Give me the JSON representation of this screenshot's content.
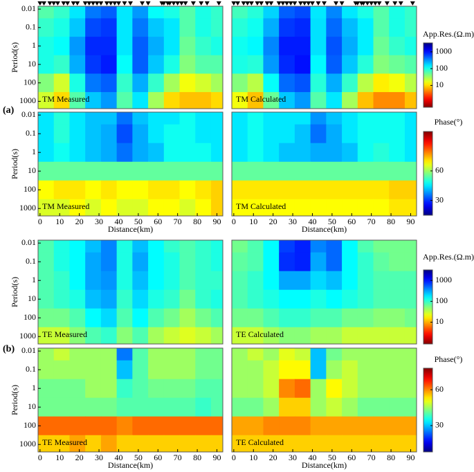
{
  "figure_labels": [
    "(a)",
    "(b)"
  ],
  "chart_data": [
    {
      "type": "heatmap",
      "title": "TM Measured",
      "stations": [
        0,
        2,
        5,
        7,
        9,
        12,
        14,
        17,
        19,
        23,
        25,
        27,
        29,
        31,
        34,
        36,
        38,
        40,
        43,
        46,
        52,
        55,
        62,
        63,
        65,
        66,
        68,
        70,
        72,
        74,
        78,
        82,
        85,
        91
      ],
      "x": [
        3,
        11,
        19,
        27,
        35,
        43,
        51,
        59,
        67,
        75,
        83,
        91
      ],
      "y": [
        0.01,
        0.1,
        1,
        10,
        100,
        1000
      ],
      "xlim": [
        -1,
        93
      ],
      "ylim": [
        0.007,
        2500
      ],
      "log_y": true,
      "yticks": [
        0.01,
        0.1,
        1,
        10,
        100,
        1000
      ],
      "ylabel": "Period(s)",
      "z": [
        [
          60,
          80,
          150,
          400,
          500,
          150,
          300,
          120,
          100,
          60,
          100,
          80
        ],
        [
          80,
          100,
          200,
          600,
          700,
          150,
          400,
          200,
          150,
          60,
          100,
          80
        ],
        [
          100,
          120,
          300,
          800,
          800,
          150,
          500,
          250,
          150,
          50,
          80,
          100
        ],
        [
          100,
          80,
          250,
          700,
          900,
          120,
          500,
          200,
          100,
          40,
          60,
          60
        ],
        [
          40,
          20,
          100,
          400,
          500,
          80,
          250,
          80,
          30,
          15,
          20,
          30
        ],
        [
          20,
          10,
          60,
          200,
          300,
          60,
          150,
          30,
          10,
          8,
          8,
          10
        ]
      ]
    },
    {
      "type": "heatmap",
      "title": "TM Calculated",
      "stations": [
        0,
        2,
        5,
        7,
        9,
        12,
        14,
        17,
        19,
        23,
        25,
        27,
        29,
        31,
        34,
        36,
        38,
        40,
        43,
        46,
        52,
        55,
        62,
        63,
        65,
        66,
        68,
        70,
        72,
        74,
        78,
        82,
        85,
        91
      ],
      "x": [
        3,
        11,
        19,
        27,
        35,
        43,
        51,
        59,
        67,
        75,
        83,
        91
      ],
      "y": [
        0.01,
        0.1,
        1,
        10,
        100,
        1000
      ],
      "xlim": [
        -1,
        93
      ],
      "ylim": [
        0.007,
        2500
      ],
      "log_y": true,
      "z": [
        [
          70,
          90,
          180,
          500,
          600,
          150,
          350,
          150,
          100,
          60,
          100,
          80
        ],
        [
          90,
          110,
          250,
          700,
          800,
          160,
          450,
          220,
          140,
          60,
          100,
          80
        ],
        [
          110,
          130,
          350,
          900,
          900,
          160,
          550,
          250,
          140,
          50,
          80,
          100
        ],
        [
          100,
          90,
          300,
          800,
          1000,
          130,
          500,
          200,
          90,
          40,
          50,
          60
        ],
        [
          40,
          25,
          120,
          450,
          550,
          90,
          250,
          80,
          25,
          12,
          15,
          25
        ],
        [
          15,
          8,
          50,
          200,
          300,
          60,
          150,
          30,
          8,
          5,
          5,
          8
        ]
      ]
    },
    {
      "type": "heatmap",
      "title": "TM Measured",
      "x": [
        3,
        11,
        19,
        27,
        35,
        43,
        51,
        59,
        67,
        75,
        83,
        91
      ],
      "y": [
        0.01,
        0.1,
        1,
        10,
        100,
        1000
      ],
      "xlim": [
        -1,
        93
      ],
      "ylim": [
        0.007,
        2500
      ],
      "log_y": true,
      "yticks": [
        0.01,
        0.1,
        1,
        10,
        100,
        1000
      ],
      "ylabel": "Period(s)",
      "xticks": [
        0,
        10,
        20,
        30,
        40,
        50,
        60,
        70,
        80,
        90
      ],
      "xlabel": "Distance(km)",
      "z": [
        [
          45,
          50,
          45,
          42,
          42,
          35,
          42,
          45,
          45,
          48,
          45,
          45
        ],
        [
          45,
          50,
          45,
          42,
          40,
          32,
          40,
          45,
          48,
          48,
          45,
          45
        ],
        [
          45,
          48,
          45,
          42,
          40,
          35,
          40,
          42,
          48,
          48,
          48,
          45
        ],
        [
          55,
          55,
          55,
          55,
          55,
          55,
          55,
          55,
          55,
          55,
          55,
          55
        ],
        [
          68,
          70,
          70,
          68,
          70,
          68,
          68,
          70,
          70,
          68,
          70,
          72
        ],
        [
          65,
          65,
          68,
          65,
          68,
          65,
          65,
          68,
          68,
          65,
          68,
          72
        ]
      ]
    },
    {
      "type": "heatmap",
      "title": "TM Calculated",
      "x": [
        3,
        11,
        19,
        27,
        35,
        43,
        51,
        59,
        67,
        75,
        83,
        91
      ],
      "y": [
        0.01,
        0.1,
        1,
        10,
        100,
        1000
      ],
      "xlim": [
        -1,
        93
      ],
      "ylim": [
        0.007,
        2500
      ],
      "log_y": true,
      "xticks": [
        0,
        10,
        20,
        30,
        40,
        50,
        60,
        70,
        80,
        90
      ],
      "xlabel": "Distance(km)",
      "z": [
        [
          45,
          48,
          45,
          45,
          45,
          38,
          42,
          45,
          48,
          48,
          48,
          45
        ],
        [
          45,
          48,
          45,
          45,
          42,
          35,
          40,
          45,
          48,
          48,
          48,
          45
        ],
        [
          45,
          48,
          45,
          42,
          42,
          40,
          40,
          42,
          48,
          50,
          48,
          45
        ],
        [
          55,
          55,
          55,
          55,
          55,
          55,
          55,
          55,
          55,
          55,
          55,
          55
        ],
        [
          70,
          70,
          70,
          70,
          70,
          70,
          70,
          70,
          70,
          70,
          72,
          72
        ],
        [
          68,
          68,
          68,
          68,
          68,
          68,
          68,
          68,
          68,
          68,
          70,
          70
        ]
      ]
    },
    {
      "type": "heatmap",
      "title": "TE Measured",
      "x": [
        3,
        11,
        19,
        27,
        35,
        43,
        51,
        59,
        67,
        75,
        83,
        91
      ],
      "y": [
        0.01,
        0.1,
        1,
        10,
        100,
        1000
      ],
      "xlim": [
        -1,
        93
      ],
      "ylim": [
        0.007,
        2500
      ],
      "log_y": true,
      "yticks": [
        0.01,
        0.1,
        1,
        10,
        100,
        1000
      ],
      "ylabel": "Period(s)",
      "z": [
        [
          80,
          120,
          150,
          250,
          400,
          120,
          250,
          150,
          100,
          80,
          100,
          120
        ],
        [
          80,
          120,
          150,
          300,
          400,
          120,
          300,
          150,
          120,
          80,
          100,
          120
        ],
        [
          80,
          100,
          150,
          300,
          350,
          120,
          250,
          150,
          120,
          80,
          100,
          100
        ],
        [
          80,
          100,
          120,
          250,
          300,
          100,
          200,
          120,
          100,
          60,
          100,
          120
        ],
        [
          60,
          60,
          80,
          150,
          200,
          80,
          150,
          80,
          60,
          40,
          60,
          80
        ],
        [
          30,
          30,
          50,
          80,
          100,
          50,
          80,
          40,
          30,
          25,
          30,
          40
        ]
      ]
    },
    {
      "type": "heatmap",
      "title": "TE Calculated",
      "x": [
        3,
        11,
        19,
        27,
        35,
        43,
        51,
        59,
        67,
        75,
        83,
        91
      ],
      "y": [
        0.01,
        0.1,
        1,
        10,
        100,
        1000
      ],
      "xlim": [
        -1,
        93
      ],
      "ylim": [
        0.007,
        2500
      ],
      "log_y": true,
      "z": [
        [
          60,
          80,
          150,
          700,
          900,
          400,
          500,
          150,
          80,
          60,
          60,
          60
        ],
        [
          70,
          80,
          150,
          800,
          900,
          300,
          500,
          150,
          100,
          70,
          60,
          60
        ],
        [
          80,
          100,
          150,
          300,
          300,
          200,
          250,
          150,
          100,
          80,
          80,
          80
        ],
        [
          80,
          100,
          120,
          150,
          150,
          120,
          150,
          120,
          100,
          80,
          80,
          80
        ],
        [
          60,
          60,
          80,
          100,
          100,
          80,
          80,
          60,
          60,
          50,
          50,
          60
        ],
        [
          30,
          30,
          40,
          50,
          50,
          40,
          40,
          30,
          30,
          30,
          30,
          30
        ]
      ]
    },
    {
      "type": "heatmap",
      "title": "TE Measured",
      "x": [
        3,
        11,
        19,
        27,
        35,
        43,
        51,
        59,
        67,
        75,
        83,
        91
      ],
      "y": [
        0.01,
        0.1,
        1,
        10,
        100,
        1000
      ],
      "xlim": [
        -1,
        93
      ],
      "ylim": [
        0.007,
        2500
      ],
      "log_y": true,
      "yticks": [
        0.01,
        0.1,
        1,
        10,
        100,
        1000
      ],
      "ylabel": "Period(s)",
      "xticks": [
        0,
        10,
        20,
        30,
        40,
        50,
        60,
        70,
        80,
        90
      ],
      "xlabel": "Distance(km)",
      "z": [
        [
          45,
          48,
          45,
          45,
          45,
          25,
          40,
          45,
          45,
          45,
          42,
          42
        ],
        [
          45,
          45,
          45,
          45,
          45,
          30,
          40,
          45,
          45,
          45,
          42,
          42
        ],
        [
          42,
          42,
          42,
          45,
          45,
          38,
          40,
          42,
          42,
          42,
          40,
          40
        ],
        [
          42,
          42,
          42,
          42,
          42,
          40,
          40,
          40,
          40,
          40,
          38,
          40
        ],
        [
          62,
          62,
          62,
          62,
          62,
          60,
          62,
          62,
          62,
          62,
          62,
          62
        ],
        [
          55,
          55,
          58,
          55,
          58,
          55,
          55,
          55,
          55,
          55,
          55,
          55
        ]
      ]
    },
    {
      "type": "heatmap",
      "title": "TE Calculated",
      "x": [
        3,
        11,
        19,
        27,
        35,
        43,
        51,
        59,
        67,
        75,
        83,
        91
      ],
      "y": [
        0.01,
        0.1,
        1,
        10,
        100,
        1000
      ],
      "xlim": [
        -1,
        93
      ],
      "ylim": [
        0.007,
        2500
      ],
      "log_y": true,
      "xticks": [
        0,
        10,
        20,
        30,
        40,
        50,
        60,
        70,
        80,
        90
      ],
      "xlabel": "Distance(km)",
      "z": [
        [
          45,
          48,
          45,
          50,
          48,
          30,
          42,
          45,
          45,
          45,
          45,
          45
        ],
        [
          45,
          45,
          48,
          52,
          52,
          30,
          45,
          48,
          45,
          45,
          45,
          45
        ],
        [
          45,
          45,
          48,
          60,
          62,
          45,
          52,
          48,
          45,
          45,
          45,
          45
        ],
        [
          42,
          42,
          45,
          55,
          55,
          45,
          48,
          45,
          42,
          42,
          42,
          42
        ],
        [
          58,
          58,
          60,
          60,
          60,
          58,
          58,
          58,
          58,
          58,
          58,
          58
        ],
        [
          55,
          55,
          55,
          55,
          55,
          55,
          55,
          55,
          55,
          55,
          55,
          55
        ]
      ]
    },
    {
      "type": "colorbar",
      "label": "App.Res.(Ω.m)",
      "lim": [
        0.5,
        3400
      ],
      "log": true,
      "ticks": [
        10,
        100,
        1000
      ],
      "colormap": "jet",
      "reverse": true
    },
    {
      "type": "colorbar",
      "label": "Phase(°)",
      "lim": [
        15,
        100
      ],
      "log": false,
      "ticks": [
        30,
        60
      ],
      "colormap": "jet",
      "reverse": false
    },
    {
      "type": "colorbar",
      "label": "App.Res.(Ω.m)",
      "lim": [
        0.9,
        3200
      ],
      "log": true,
      "ticks": [
        10,
        100,
        1000
      ],
      "colormap": "jet",
      "reverse": true
    },
    {
      "type": "colorbar",
      "label": "Phase(°)",
      "lim": [
        8,
        78
      ],
      "log": false,
      "ticks": [
        30,
        60
      ],
      "colormap": "jet",
      "reverse": false
    }
  ]
}
